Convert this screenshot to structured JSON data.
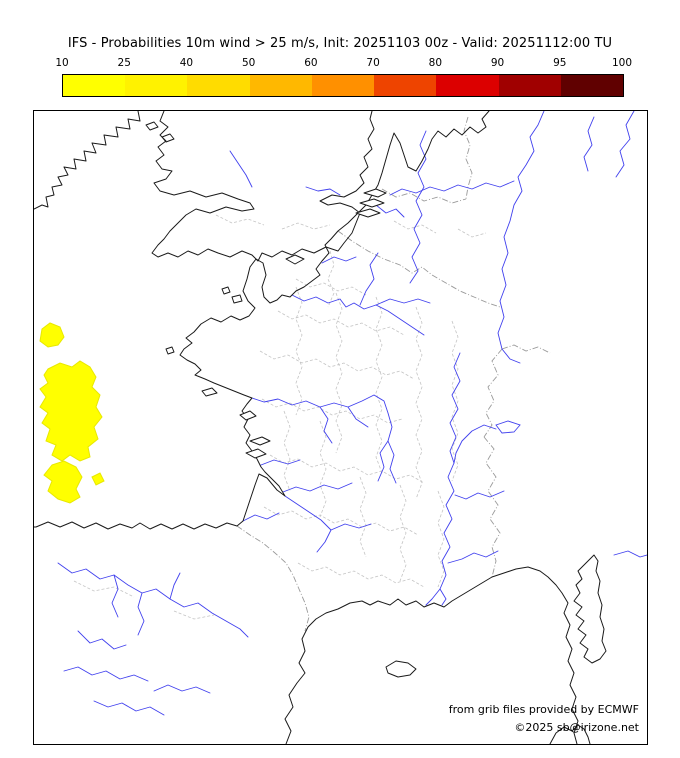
{
  "title": "IFS - Probabilities 10m wind > 25 m/s, Init: 20251103 00z - Valid: 20251112:00 TU",
  "colorbar": {
    "tick_labels": [
      "10",
      "25",
      "40",
      "50",
      "60",
      "70",
      "80",
      "90",
      "95",
      "100"
    ],
    "segments": [
      {
        "range": "10-25",
        "color": "#ffff00"
      },
      {
        "range": "25-40",
        "color": "#fff200"
      },
      {
        "range": "40-50",
        "color": "#ffdc00"
      },
      {
        "range": "50-60",
        "color": "#ffb800"
      },
      {
        "range": "60-70",
        "color": "#ff9000"
      },
      {
        "range": "70-80",
        "color": "#ee4400"
      },
      {
        "range": "80-90",
        "color": "#dc0000"
      },
      {
        "range": "90-95",
        "color": "#a00000"
      },
      {
        "range": "95-100",
        "color": "#600000"
      }
    ]
  },
  "map": {
    "credits": [
      "from grib files provided by ECMWF",
      "©2025 sb@irizone.net"
    ],
    "colors": {
      "coastline": "#1a1a1a",
      "river": "#4040ee",
      "admin-border": "#c4c4c4",
      "country-border": "#9a9a9a",
      "probability-fill": "#ffff00",
      "probability-stroke": "#e8e800"
    },
    "probability_areas": {
      "band": "10-25",
      "color": "#ffff00",
      "location": "Atlantic Ocean west of Brittany"
    }
  }
}
